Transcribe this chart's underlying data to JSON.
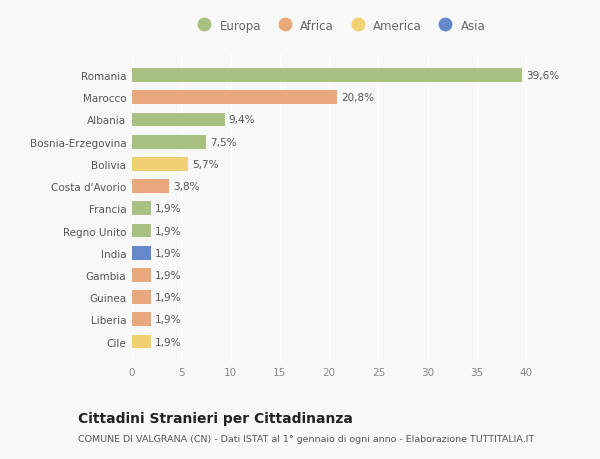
{
  "countries": [
    "Romania",
    "Marocco",
    "Albania",
    "Bosnia-Erzegovina",
    "Bolivia",
    "Costa d'Avorio",
    "Francia",
    "Regno Unito",
    "India",
    "Gambia",
    "Guinea",
    "Liberia",
    "Cile"
  ],
  "values": [
    39.6,
    20.8,
    9.4,
    7.5,
    5.7,
    3.8,
    1.9,
    1.9,
    1.9,
    1.9,
    1.9,
    1.9,
    1.9
  ],
  "labels": [
    "39,6%",
    "20,8%",
    "9,4%",
    "7,5%",
    "5,7%",
    "3,8%",
    "1,9%",
    "1,9%",
    "1,9%",
    "1,9%",
    "1,9%",
    "1,9%",
    "1,9%"
  ],
  "colors": [
    "#a8c080",
    "#e8a87c",
    "#a8c080",
    "#a8c080",
    "#f0d070",
    "#e8a87c",
    "#a8c080",
    "#a8c080",
    "#6688cc",
    "#e8a87c",
    "#e8a87c",
    "#e8a87c",
    "#f0d070"
  ],
  "legend_labels": [
    "Europa",
    "Africa",
    "America",
    "Asia"
  ],
  "legend_colors": [
    "#a8c080",
    "#e8a87c",
    "#f0d070",
    "#6688cc"
  ],
  "title": "Cittadini Stranieri per Cittadinanza",
  "subtitle": "COMUNE DI VALGRANA (CN) - Dati ISTAT al 1° gennaio di ogni anno - Elaborazione TUTTITALIA.IT",
  "xlim": [
    0,
    42
  ],
  "xticks": [
    0,
    5,
    10,
    15,
    20,
    25,
    30,
    35,
    40
  ],
  "bg_color": "#f8f8f8",
  "bar_height": 0.62,
  "label_fontsize": 7.5,
  "tick_fontsize": 7.5,
  "title_fontsize": 10,
  "subtitle_fontsize": 6.8,
  "legend_fontsize": 8.5
}
